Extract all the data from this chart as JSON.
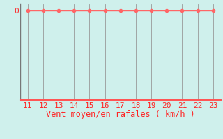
{
  "x_values": [
    11,
    12,
    13,
    14,
    15,
    16,
    17,
    18,
    19,
    20,
    21,
    22,
    23
  ],
  "y_values": [
    0,
    0,
    0,
    0,
    0,
    0,
    0,
    0,
    0,
    0,
    0,
    0,
    0
  ],
  "x_min": 10.5,
  "x_max": 23.5,
  "y_min": -4.5,
  "y_max": 0.3,
  "background_color": "#cff0ec",
  "line_color": "#ff6666",
  "grid_color": "#999999",
  "left_spine_color": "#777777",
  "bottom_line_color": "#ff5555",
  "xlabel": "Vent moyen/en rafales ( km/h )",
  "xlabel_color": "#ff2222",
  "tick_color": "#ff2222",
  "xlabel_fontsize": 8.5,
  "xtick_fontsize": 8,
  "ytick_fontsize": 8,
  "ytick_labels": [
    "0"
  ],
  "ytick_positions": [
    0
  ],
  "marker_size": 3
}
